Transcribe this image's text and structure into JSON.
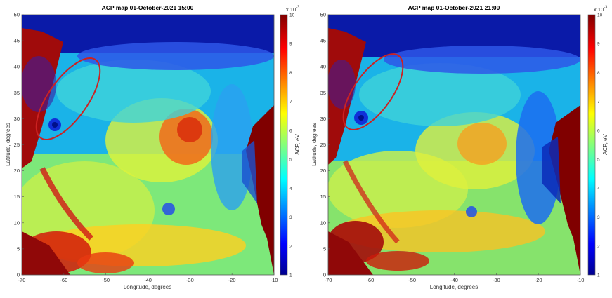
{
  "chart_data": [
    {
      "type": "heatmap",
      "title": "ACP map 01-October-2021 15:00",
      "xlabel": "Longitude, degrees",
      "ylabel": "Latitude, degrees",
      "xlim": [
        -70,
        -10
      ],
      "ylim": [
        0,
        50
      ],
      "xticks": [
        "-70",
        "-60",
        "-50",
        "-40",
        "-30",
        "-20",
        "-10"
      ],
      "yticks": [
        "0",
        "5",
        "10",
        "15",
        "20",
        "25",
        "30",
        "35",
        "40",
        "45",
        "50"
      ],
      "colorbar": {
        "label": "ACP, eV",
        "exponent_label": "x 10",
        "exponent": "-3",
        "ticks": [
          "1",
          "2",
          "3",
          "4",
          "5",
          "6",
          "7",
          "8",
          "9",
          "10"
        ],
        "range": [
          1,
          10
        ]
      },
      "annotation": {
        "shape": "ellipse",
        "color": "#cc2222",
        "center_lon": -59.5,
        "center_lat": 33.5
      }
    },
    {
      "type": "heatmap",
      "title": "ACP map 01-October-2021 21:00",
      "xlabel": "Longitude, degrees",
      "ylabel": "Latitude, degrees",
      "xlim": [
        -70,
        -10
      ],
      "ylim": [
        0,
        50
      ],
      "xticks": [
        "-70",
        "-60",
        "-50",
        "-40",
        "-30",
        "-20",
        "-10"
      ],
      "yticks": [
        "0",
        "5",
        "10",
        "15",
        "20",
        "25",
        "30",
        "35",
        "40",
        "45",
        "50"
      ],
      "colorbar": {
        "label": "ACP, eV",
        "exponent_label": "x 10",
        "exponent": "-3",
        "ticks": [
          "1",
          "2",
          "3",
          "4",
          "5",
          "6",
          "7",
          "8",
          "9",
          "10"
        ],
        "range": [
          1,
          10
        ]
      },
      "annotation": {
        "shape": "ellipse",
        "color": "#cc2222",
        "center_lon": -57.5,
        "center_lat": 35.5
      }
    }
  ]
}
